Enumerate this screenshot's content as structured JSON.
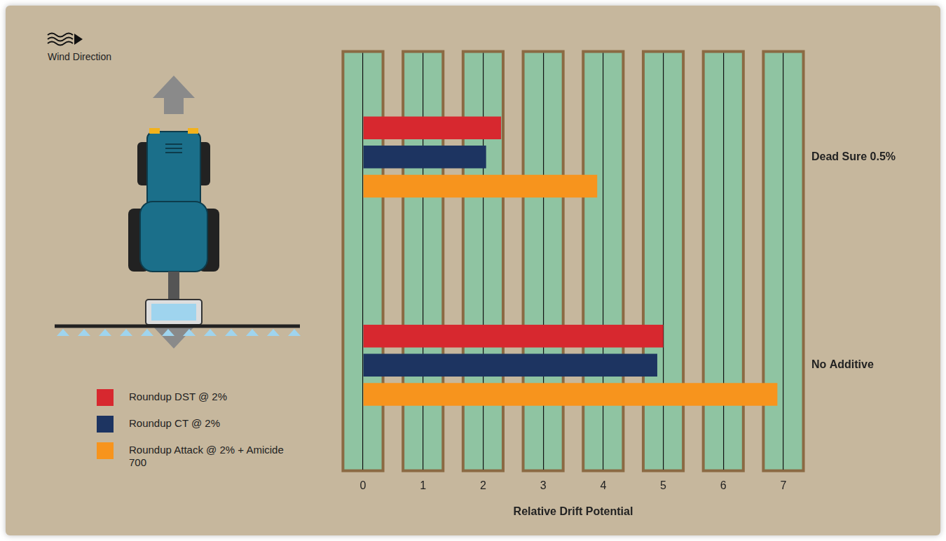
{
  "chart_data": {
    "type": "bar",
    "orientation": "horizontal",
    "annotation": "Wind Direction",
    "categories": [
      "Dead Sure 0.5%",
      "No Additive"
    ],
    "series": [
      {
        "name": "Roundup DST @ 2%",
        "color": "#d7282f",
        "values": [
          2.3,
          5.0
        ]
      },
      {
        "name": "Roundup CT @ 2%",
        "color": "#1d3461",
        "values": [
          2.05,
          4.9
        ]
      },
      {
        "name": "Roundup Attack @ 2% + Amicide 700",
        "color": "#f7941d",
        "values": [
          3.9,
          6.9
        ]
      }
    ],
    "x_label": "Relative Drift Potential",
    "xlim": [
      0,
      7
    ],
    "xticks": [
      0,
      1,
      2,
      3,
      4,
      5,
      6,
      7
    ],
    "grid": true,
    "legend": "left"
  }
}
